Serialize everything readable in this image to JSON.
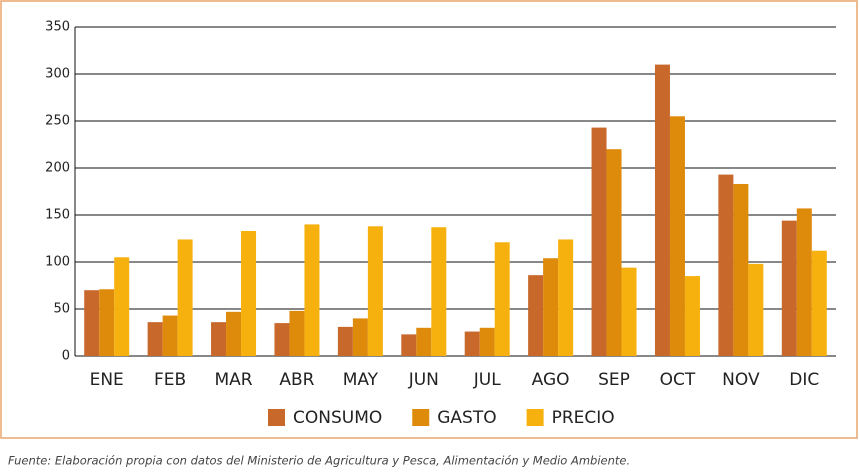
{
  "chart_data": {
    "type": "bar",
    "categories": [
      "ENE",
      "FEB",
      "MAR",
      "ABR",
      "MAY",
      "JUN",
      "JUL",
      "AGO",
      "SEP",
      "OCT",
      "NOV",
      "DIC"
    ],
    "series": [
      {
        "name": "CONSUMO",
        "color": "#c8692b",
        "values": [
          70,
          36,
          36,
          35,
          31,
          23,
          26,
          86,
          243,
          310,
          193,
          144
        ]
      },
      {
        "name": "GASTO",
        "color": "#de8a0a",
        "values": [
          71,
          43,
          47,
          48,
          40,
          30,
          30,
          104,
          220,
          255,
          183,
          157
        ]
      },
      {
        "name": "PRECIO",
        "color": "#f7b10e",
        "values": [
          105,
          124,
          133,
          140,
          138,
          137,
          121,
          124,
          94,
          85,
          98,
          112
        ]
      }
    ],
    "ylim": [
      0,
      350
    ],
    "yticks": [
      0,
      50,
      100,
      150,
      200,
      250,
      300,
      350
    ],
    "grid": true,
    "legend": "bottom",
    "source": "Fuente: Elaboración propia con datos del Ministerio de Agricultura y Pesca, Alimentación y Medio Ambiente."
  }
}
